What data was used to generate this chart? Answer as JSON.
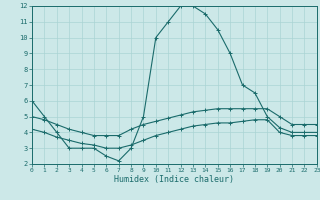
{
  "xlabel": "Humidex (Indice chaleur)",
  "bg_color": "#cce8e8",
  "line_color": "#1a6b6b",
  "grid_color": "#aad4d4",
  "xlim": [
    0,
    23
  ],
  "ylim": [
    2,
    12
  ],
  "xticks": [
    0,
    1,
    2,
    3,
    4,
    5,
    6,
    7,
    8,
    9,
    10,
    11,
    12,
    13,
    14,
    15,
    16,
    17,
    18,
    19,
    20,
    21,
    22,
    23
  ],
  "yticks": [
    2,
    3,
    4,
    5,
    6,
    7,
    8,
    9,
    10,
    11,
    12
  ],
  "line1_x": [
    0,
    1,
    2,
    3,
    4,
    5,
    6,
    7,
    8,
    9,
    10,
    11,
    12,
    13,
    14,
    15,
    16,
    17,
    18,
    19,
    20,
    21,
    22,
    23
  ],
  "line1_y": [
    6.0,
    5.0,
    4.0,
    3.0,
    3.0,
    3.0,
    2.5,
    2.2,
    3.0,
    5.0,
    10.0,
    11.0,
    12.0,
    12.0,
    11.5,
    10.5,
    9.0,
    7.0,
    6.5,
    5.0,
    4.3,
    4.0,
    4.0,
    4.0
  ],
  "line2_x": [
    0,
    1,
    2,
    3,
    4,
    5,
    6,
    7,
    8,
    9,
    10,
    11,
    12,
    13,
    14,
    15,
    16,
    17,
    18,
    19,
    20,
    21,
    22,
    23
  ],
  "line2_y": [
    5.0,
    4.8,
    4.5,
    4.2,
    4.0,
    3.8,
    3.8,
    3.8,
    4.2,
    4.5,
    4.7,
    4.9,
    5.1,
    5.3,
    5.4,
    5.5,
    5.5,
    5.5,
    5.5,
    5.5,
    5.0,
    4.5,
    4.5,
    4.5
  ],
  "line3_x": [
    0,
    1,
    2,
    3,
    4,
    5,
    6,
    7,
    8,
    9,
    10,
    11,
    12,
    13,
    14,
    15,
    16,
    17,
    18,
    19,
    20,
    21,
    22,
    23
  ],
  "line3_y": [
    4.2,
    4.0,
    3.7,
    3.5,
    3.3,
    3.2,
    3.0,
    3.0,
    3.2,
    3.5,
    3.8,
    4.0,
    4.2,
    4.4,
    4.5,
    4.6,
    4.6,
    4.7,
    4.8,
    4.8,
    4.0,
    3.8,
    3.8,
    3.8
  ],
  "font_family": "monospace"
}
